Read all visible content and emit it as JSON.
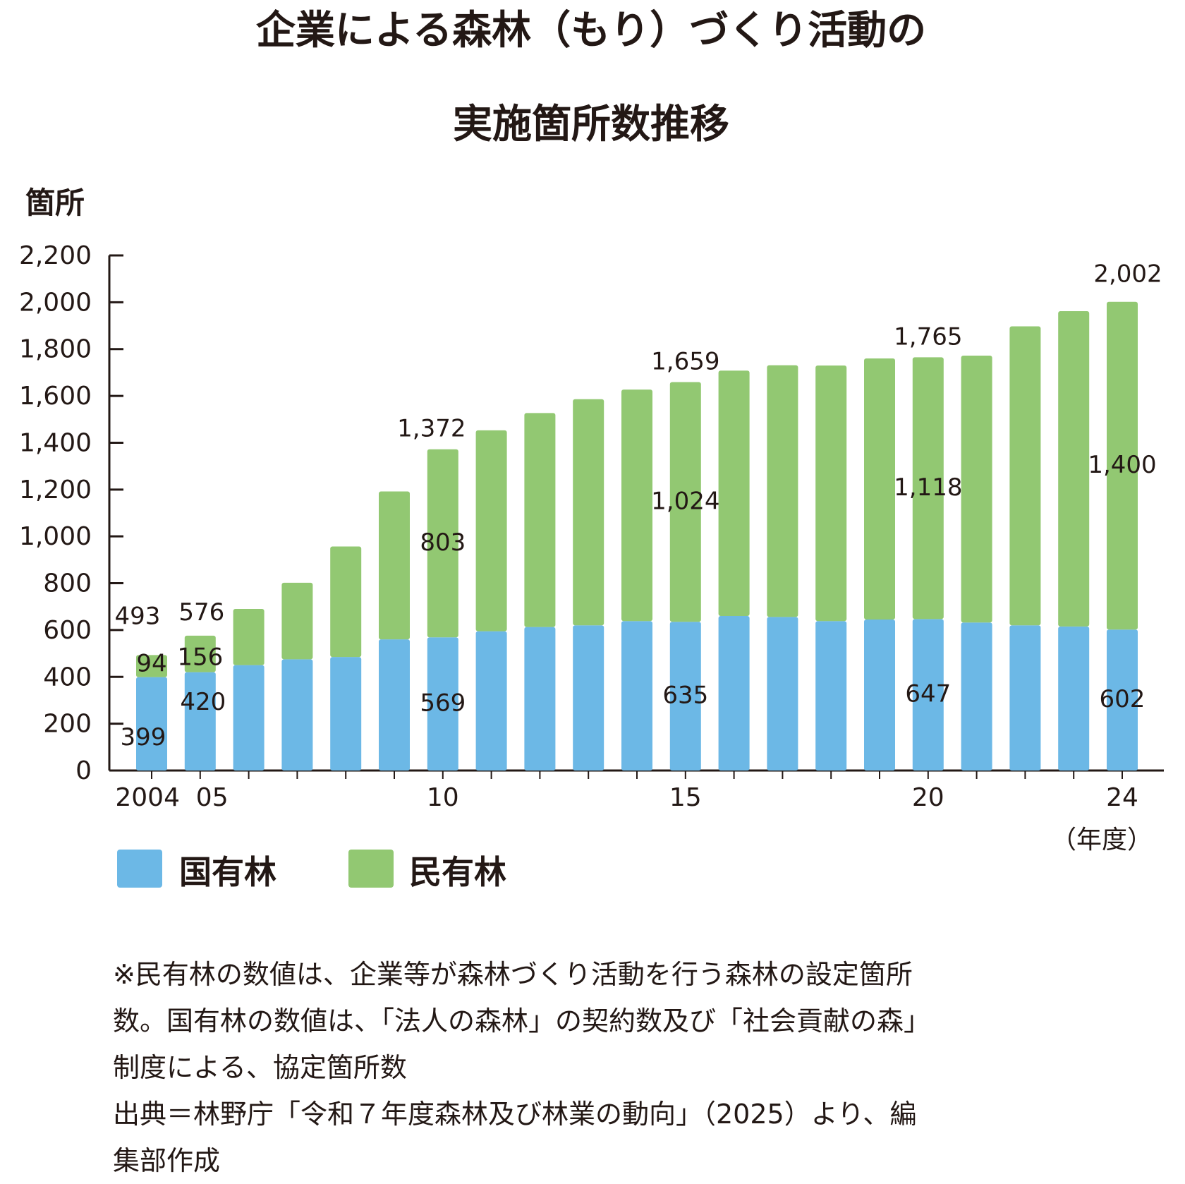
{
  "title": {
    "line1": "企業による森林（もり）づくり活動の",
    "line2": "実施箇所数推移"
  },
  "colors": {
    "national": "#6cb8e6",
    "private": "#92c872",
    "axis": "#231815"
  },
  "legend": {
    "national": "国有林",
    "private": "民有林"
  },
  "notes": [
    "※民有林の数値は、企業等が森林づくり活動を行う森林の設定箇所",
    "数。国有林の数値は、「法人の森林」の契約数及び「社会貢献の森」",
    "制度による、協定箇所数",
    "出典＝林野庁「令和７年度森林及び林業の動向」（2025）より、編",
    "集部作成"
  ],
  "chart_data": {
    "type": "bar",
    "stacked": true,
    "ylabel": "箇所",
    "xlabel": "（年度）",
    "ylim": [
      0,
      2200
    ],
    "yticks": [
      "0",
      "200",
      "400",
      "600",
      "800",
      "1,000",
      "1,200",
      "1,400",
      "1,600",
      "1,800",
      "2,000",
      "2,200"
    ],
    "categories": [
      "2004",
      "05",
      "06",
      "07",
      "08",
      "09",
      "10",
      "11",
      "12",
      "13",
      "14",
      "15",
      "16",
      "17",
      "18",
      "19",
      "20",
      "21",
      "22",
      "23",
      "24"
    ],
    "xtick_labels": [
      "2004",
      "05",
      "",
      "",
      "",
      "",
      "10",
      "",
      "",
      "",
      "",
      "15",
      "",
      "",
      "",
      "",
      "20",
      "",
      "",
      "",
      "24"
    ],
    "series": [
      {
        "name": "国有林",
        "color": "#6cb8e6",
        "values": [
          399,
          420,
          450,
          475,
          485,
          560,
          569,
          595,
          613,
          620,
          638,
          635,
          660,
          656,
          638,
          645,
          647,
          632,
          620,
          615,
          602
        ]
      },
      {
        "name": "民有林",
        "color": "#92c872",
        "values": [
          94,
          156,
          240,
          327,
          472,
          632,
          803,
          858,
          914,
          966,
          989,
          1024,
          1048,
          1075,
          1092,
          1115,
          1118,
          1140,
          1277,
          1347,
          1400
        ]
      }
    ],
    "totals": [
      493,
      576,
      690,
      802,
      957,
      1192,
      1372,
      1453,
      1527,
      1586,
      1627,
      1659,
      1708,
      1731,
      1730,
      1760,
      1765,
      1772,
      1897,
      1962,
      2002
    ],
    "segment_labels": [
      {
        "index": 0,
        "national": "399",
        "private": "94",
        "total": "493"
      },
      {
        "index": 1,
        "national": "420",
        "private": "156",
        "total": "576"
      },
      {
        "index": 6,
        "national": "569",
        "private": "803",
        "total": "1,372"
      },
      {
        "index": 11,
        "national": "635",
        "private": "1,024",
        "total": "1,659"
      },
      {
        "index": 16,
        "national": "647",
        "private": "1,118",
        "total": "1,765"
      },
      {
        "index": 20,
        "national": "602",
        "private": "1,400",
        "total": "2,002"
      }
    ]
  }
}
